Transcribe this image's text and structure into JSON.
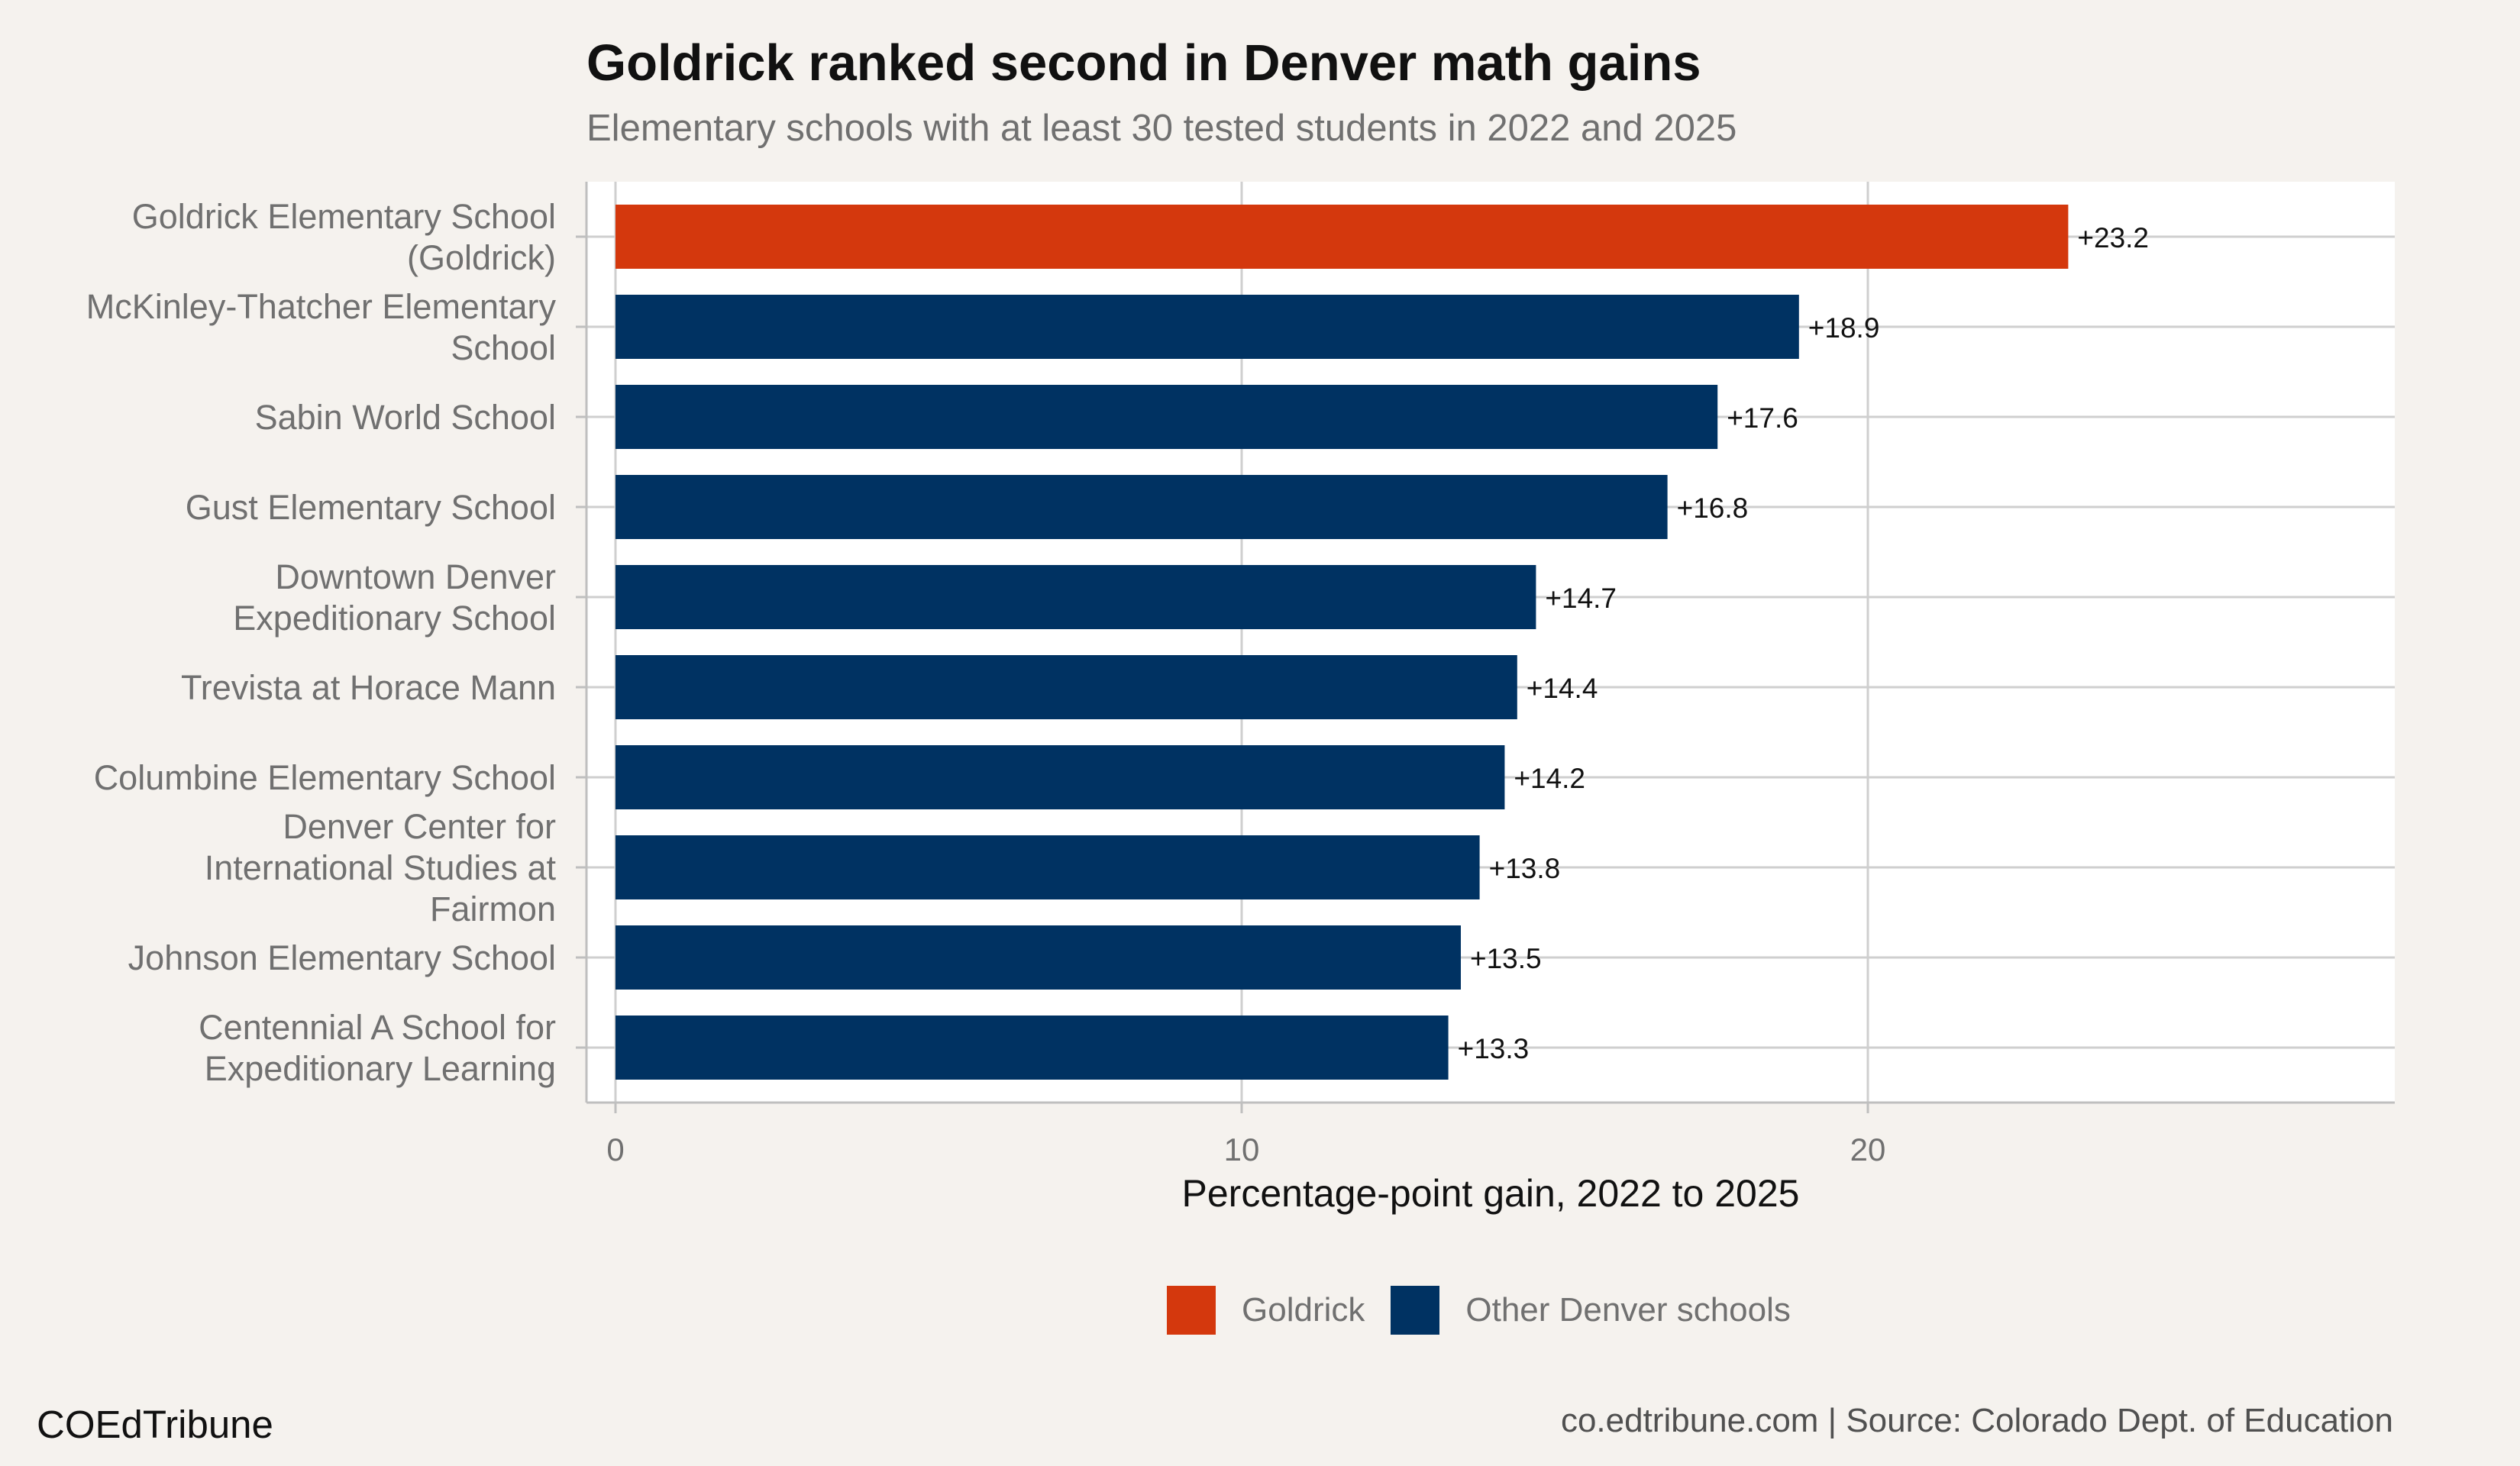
{
  "title": "Goldrick ranked second in Denver math gains",
  "subtitle": "Elementary schools with at least 30 tested students in 2022 and 2025",
  "footer": {
    "brand": "COEdTribune",
    "source": "co.edtribune.com | Source: Colorado Dept. of Education"
  },
  "colors": {
    "highlight": "#d4380d",
    "other": "#003262",
    "panel": "#ffffff",
    "grid": "#cfcfcf"
  },
  "chart_data": {
    "type": "bar",
    "orientation": "horizontal",
    "title": "Goldrick ranked second in Denver math gains",
    "subtitle": "Elementary schools with at least 30 tested students in 2022 and 2025",
    "xlabel": "Percentage-point gain, 2022 to 2025",
    "ylabel": "",
    "xlim": [
      0,
      28.4
    ],
    "xticks": [
      0,
      10,
      20
    ],
    "grid": true,
    "legend_position": "bottom",
    "legend": [
      {
        "name": "Goldrick",
        "color": "#d4380d"
      },
      {
        "name": "Other Denver schools",
        "color": "#003262"
      }
    ],
    "categories": [
      [
        "Goldrick Elementary School",
        "(Goldrick)"
      ],
      [
        "McKinley-Thatcher Elementary",
        "School"
      ],
      [
        "Sabin World School"
      ],
      [
        "Gust Elementary School"
      ],
      [
        "Downtown Denver",
        "Expeditionary School"
      ],
      [
        "Trevista at Horace Mann"
      ],
      [
        "Columbine Elementary School"
      ],
      [
        "Denver Center for",
        "International Studies at",
        "Fairmon"
      ],
      [
        "Johnson Elementary School"
      ],
      [
        "Centennial A School for",
        "Expeditionary Learning"
      ]
    ],
    "values": [
      23.2,
      18.9,
      17.6,
      16.8,
      14.7,
      14.4,
      14.2,
      13.8,
      13.5,
      13.3
    ],
    "value_labels": [
      "+23.2",
      "+18.9",
      "+17.6",
      "+16.8",
      "+14.7",
      "+14.4",
      "+14.2",
      "+13.8",
      "+13.5",
      "+13.3"
    ],
    "groups": [
      "Goldrick",
      "Other Denver schools",
      "Other Denver schools",
      "Other Denver schools",
      "Other Denver schools",
      "Other Denver schools",
      "Other Denver schools",
      "Other Denver schools",
      "Other Denver schools",
      "Other Denver schools"
    ]
  }
}
